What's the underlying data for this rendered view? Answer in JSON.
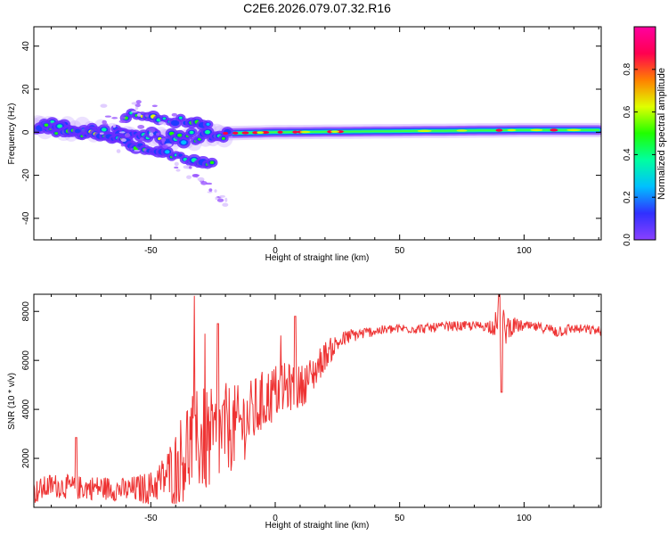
{
  "figure": {
    "title": "C2E6.2026.079.07.32.R16"
  },
  "chart_data": [
    {
      "type": "heatmap",
      "title": "",
      "xlabel": "Height of straight line (km)",
      "ylabel": "Frequency (Hz)",
      "xlim": [
        -97,
        131
      ],
      "ylim": [
        -50,
        49
      ],
      "x_ticks": [
        -50,
        0,
        50,
        100
      ],
      "y_ticks": [
        -40,
        -20,
        0,
        20,
        40
      ],
      "grid": false,
      "colorbar": {
        "label": "Normalized spectral amplitude",
        "range": [
          0,
          1
        ],
        "ticks": [
          0.0,
          0.2,
          0.4,
          0.6,
          0.8
        ],
        "tick_labels": [
          "0.0",
          "0.2",
          "0.4",
          "0.6",
          "0.8"
        ],
        "colormap": [
          "#8a40ff",
          "#3030ff",
          "#00c0ff",
          "#00ffa0",
          "#20ff00",
          "#e0ff00",
          "#ff8000",
          "#ff0050",
          "#ff00a0"
        ]
      },
      "features": {
        "band_center_hz": [
          {
            "x": -95,
            "f": 3
          },
          {
            "x": -85,
            "f": 1.5
          },
          {
            "x": -70,
            "f": 0
          },
          {
            "x": -55,
            "f": -2
          },
          {
            "x": -40,
            "f": -3
          },
          {
            "x": -30,
            "f": -2
          },
          {
            "x": -20,
            "f": -0.5
          },
          {
            "x": 0,
            "f": 0
          },
          {
            "x": 50,
            "f": 0.5
          },
          {
            "x": 100,
            "f": 1
          },
          {
            "x": 131,
            "f": 1
          }
        ],
        "lower_branch_hz": [
          {
            "x": -95,
            "f": 3
          },
          {
            "x": -75,
            "f": -1
          },
          {
            "x": -60,
            "f": -5
          },
          {
            "x": -48,
            "f": -8
          },
          {
            "x": -40,
            "f": -11
          },
          {
            "x": -33,
            "f": -13
          },
          {
            "x": -25,
            "f": -14
          }
        ],
        "upper_branch_hz": [
          {
            "x": -60,
            "f": 8
          },
          {
            "x": -48,
            "f": 7
          },
          {
            "x": -35,
            "f": 5
          },
          {
            "x": -25,
            "f": 3
          }
        ],
        "scatter_tail_hz": [
          {
            "x": -40,
            "f": -17
          },
          {
            "x": -35,
            "f": -18
          },
          {
            "x": -30,
            "f": -22
          },
          {
            "x": -25,
            "f": -26
          },
          {
            "x": -22,
            "f": -30
          },
          {
            "x": -20,
            "f": -34
          }
        ],
        "hotspots_x": [
          -20,
          -16,
          -12,
          -8,
          -4,
          2,
          8,
          10,
          22,
          26,
          90,
          112
        ]
      }
    },
    {
      "type": "line",
      "title": "",
      "xlabel": "Height of straight line (km)",
      "ylabel": "SNR (10 * v/v)",
      "xlim": [
        -97,
        131
      ],
      "ylim": [
        0,
        8700
      ],
      "x_ticks": [
        -50,
        0,
        50,
        100
      ],
      "y_ticks": [
        2000,
        4000,
        6000,
        8000
      ],
      "grid": false,
      "series": [
        {
          "color": "#ee3333",
          "x": [
            -97,
            -90,
            -80,
            -70,
            -60,
            -50,
            -45,
            -40,
            -35,
            -30,
            -25,
            -20,
            -15,
            -10,
            -5,
            0,
            5,
            10,
            15,
            20,
            25,
            30,
            40,
            50,
            60,
            70,
            80,
            85,
            90,
            92,
            95,
            100,
            110,
            113,
            120,
            131
          ],
          "y": [
            600,
            900,
            800,
            800,
            700,
            800,
            1200,
            1600,
            2500,
            2800,
            2600,
            3200,
            3300,
            3700,
            4300,
            4700,
            4900,
            4900,
            5400,
            6200,
            6700,
            7000,
            7200,
            7300,
            7300,
            7400,
            7400,
            7400,
            7500,
            7300,
            7400,
            7400,
            7300,
            7200,
            7300,
            7200
          ],
          "noise_amplitude": [
            500,
            500,
            500,
            500,
            500,
            700,
            900,
            1600,
            2200,
            2300,
            2200,
            1900,
            1700,
            1500,
            1300,
            1200,
            1000,
            900,
            800,
            600,
            400,
            300,
            200,
            200,
            200,
            200,
            200,
            200,
            700,
            800,
            400,
            200,
            200,
            300,
            200,
            200
          ],
          "features": [
            {
              "x": 91,
              "y": 4700,
              "label": ""
            },
            {
              "x": 90,
              "y": 8700,
              "label": ""
            },
            {
              "x": -23,
              "y": 7500,
              "label": ""
            },
            {
              "x": 8,
              "y": 7800,
              "label": ""
            },
            {
              "x": -80,
              "y": 2850,
              "label": ""
            }
          ]
        }
      ]
    }
  ]
}
